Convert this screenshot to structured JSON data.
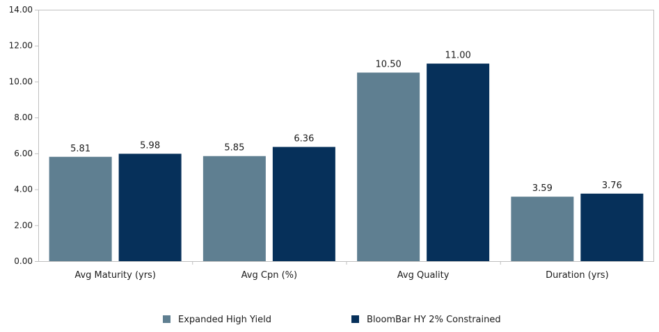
{
  "chart_data": {
    "type": "bar",
    "categories": [
      "Avg Maturity (yrs)",
      "Avg Cpn (%)",
      "Avg Quality",
      "Duration (yrs)"
    ],
    "series": [
      {
        "name": "Expanded High Yield",
        "values": [
          5.81,
          5.85,
          10.5,
          3.59
        ],
        "data_labels": [
          "5.81",
          "5.85",
          "10.50",
          "3.59"
        ],
        "color": "#5F7F91"
      },
      {
        "name": "BloomBar HY 2% Constrained",
        "values": [
          5.98,
          6.36,
          11.0,
          3.76
        ],
        "data_labels": [
          "5.98",
          "6.36",
          "11.00",
          "3.76"
        ],
        "color": "#06305A"
      }
    ],
    "ylim": [
      0,
      14
    ],
    "yticks": [
      0,
      2,
      4,
      6,
      8,
      10,
      12,
      14
    ],
    "ytick_labels": [
      "0.00",
      "2.00",
      "4.00",
      "6.00",
      "8.00",
      "10.00",
      "12.00",
      "14.00"
    ],
    "title": "",
    "xlabel": "",
    "ylabel": "",
    "grid": false,
    "legend_position": "bottom",
    "axis_color": "#BFBFBF"
  }
}
